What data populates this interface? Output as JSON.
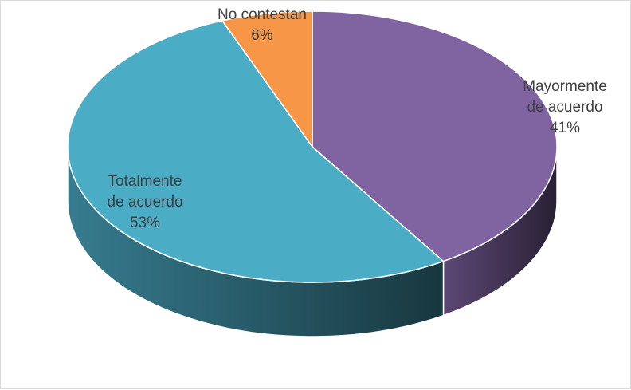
{
  "chart_data": {
    "type": "pie",
    "style": "3d",
    "title": "",
    "slices": [
      {
        "category": "Mayormente de acuerdo",
        "label_lines": [
          "Mayormente",
          "de acuerdo"
        ],
        "percent_label": "41%",
        "value": 41,
        "color": "#8064A2"
      },
      {
        "category": "Totalmente de acuerdo",
        "label_lines": [
          "Totalmente",
          "de acuerdo"
        ],
        "percent_label": "53%",
        "value": 53,
        "color": "#4BACC6"
      },
      {
        "category": "No contestan",
        "label_lines": [
          "No contestan"
        ],
        "percent_label": "6%",
        "value": 6,
        "color": "#F79646"
      }
    ],
    "legend": "none",
    "data_labels": "category and percentage"
  }
}
